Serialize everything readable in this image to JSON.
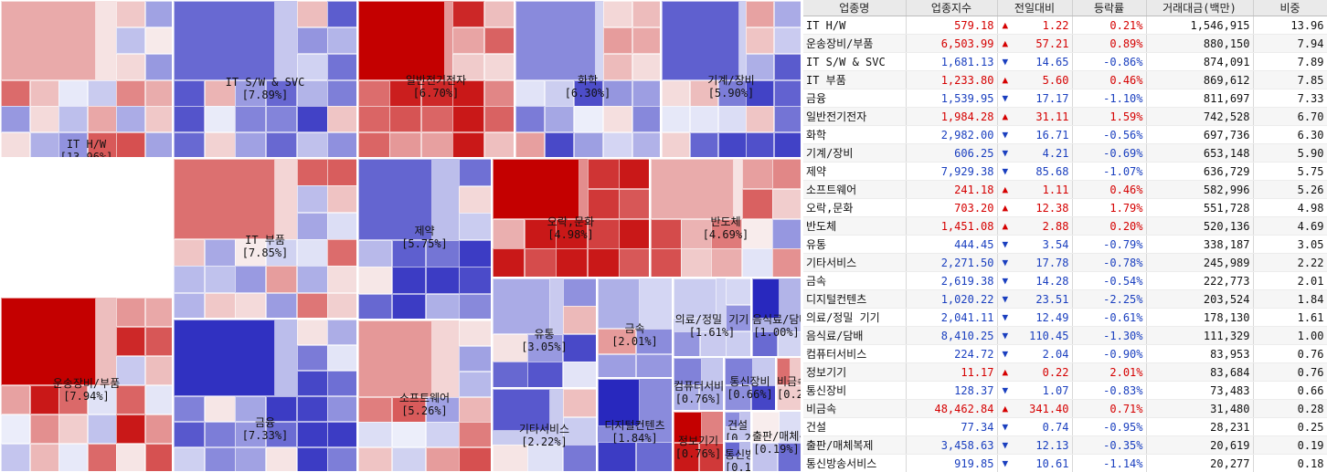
{
  "colors": {
    "up_strong": "#c00000",
    "down_strong": "#0000a8",
    "up_text": "#d50000",
    "down_text": "#1a3fbf"
  },
  "treemap": {
    "sectors": [
      {
        "label": "IT H/W",
        "weight": "[13.96%]",
        "change_pct": 0.21
      },
      {
        "label": "IT S/W & SVC",
        "weight": "[7.89%]",
        "change_pct": -0.86
      },
      {
        "label": "일반전기전자",
        "weight": "[6.70%]",
        "change_pct": 1.59
      },
      {
        "label": "화학",
        "weight": "[6.30%]",
        "change_pct": -0.56
      },
      {
        "label": "기계/장비",
        "weight": "[5.90%]",
        "change_pct": -0.69
      },
      {
        "label": "IT 부품",
        "weight": "[7.85%]",
        "change_pct": 0.46
      },
      {
        "label": "제약",
        "weight": "[5.75%]",
        "change_pct": -1.07
      },
      {
        "label": "오락,문화",
        "weight": "[4.98%]",
        "change_pct": 1.79
      },
      {
        "label": "반도체",
        "weight": "[4.69%]",
        "change_pct": 0.2
      },
      {
        "label": "운송장비/부품",
        "weight": "[7.94%]",
        "change_pct": 0.89
      },
      {
        "label": "금융",
        "weight": "[7.33%]",
        "change_pct": -1.1
      },
      {
        "label": "소프트웨어",
        "weight": "[5.26%]",
        "change_pct": 0.46
      },
      {
        "label": "유통",
        "weight": "[3.05%]",
        "change_pct": -0.79
      },
      {
        "label": "금속",
        "weight": "[2.01%]",
        "change_pct": -0.54
      },
      {
        "label": "기타서비스",
        "weight": "[2.22%]",
        "change_pct": -0.78
      },
      {
        "label": "디지털컨텐츠",
        "weight": "[1.84%]",
        "change_pct": -2.25
      },
      {
        "label": "의료/정밀 기기",
        "weight": "[1.61%]",
        "change_pct": -0.61
      },
      {
        "label": "음식료/담배",
        "weight": "[1.00%]",
        "change_pct": -1.3
      },
      {
        "label": "컴퓨터서비스",
        "weight": "[0.76%]",
        "change_pct": -0.9
      },
      {
        "label": "통신장비",
        "weight": "[0.66%]",
        "change_pct": -0.83
      },
      {
        "label": "비금속",
        "weight": "[0.28%]",
        "change_pct": 0.71
      },
      {
        "label": "건설",
        "weight": "[0.25%]",
        "change_pct": -0.95
      },
      {
        "label": "정보기기",
        "weight": "[0.76%]",
        "change_pct": 2.01
      },
      {
        "label": "출판/매체복제",
        "weight": "[0.19%]",
        "change_pct": -0.35
      },
      {
        "label": "통신방송서비스",
        "weight": "[0.18%]",
        "change_pct": -1.14
      }
    ]
  },
  "table": {
    "headers": [
      "업종명",
      "업종지수",
      "전일대비",
      "등락률",
      "거래대금(백만)",
      "비중"
    ],
    "rows": [
      {
        "name": "IT H/W",
        "index": "579.18",
        "dir": "up",
        "change": "1.22",
        "rate": "0.21%",
        "amount": "1,546,915",
        "weight": "13.96"
      },
      {
        "name": "운송장비/부품",
        "index": "6,503.99",
        "dir": "up",
        "change": "57.21",
        "rate": "0.89%",
        "amount": "880,150",
        "weight": "7.94"
      },
      {
        "name": "IT S/W & SVC",
        "index": "1,681.13",
        "dir": "down",
        "change": "14.65",
        "rate": "-0.86%",
        "amount": "874,091",
        "weight": "7.89"
      },
      {
        "name": "IT 부품",
        "index": "1,233.80",
        "dir": "up",
        "change": "5.60",
        "rate": "0.46%",
        "amount": "869,612",
        "weight": "7.85"
      },
      {
        "name": "금융",
        "index": "1,539.95",
        "dir": "down",
        "change": "17.17",
        "rate": "-1.10%",
        "amount": "811,697",
        "weight": "7.33"
      },
      {
        "name": "일반전기전자",
        "index": "1,984.28",
        "dir": "up",
        "change": "31.11",
        "rate": "1.59%",
        "amount": "742,528",
        "weight": "6.70"
      },
      {
        "name": "화학",
        "index": "2,982.00",
        "dir": "down",
        "change": "16.71",
        "rate": "-0.56%",
        "amount": "697,736",
        "weight": "6.30"
      },
      {
        "name": "기계/장비",
        "index": "606.25",
        "dir": "down",
        "change": "4.21",
        "rate": "-0.69%",
        "amount": "653,148",
        "weight": "5.90"
      },
      {
        "name": "제약",
        "index": "7,929.38",
        "dir": "down",
        "change": "85.68",
        "rate": "-1.07%",
        "amount": "636,729",
        "weight": "5.75"
      },
      {
        "name": "소프트웨어",
        "index": "241.18",
        "dir": "up",
        "change": "1.11",
        "rate": "0.46%",
        "amount": "582,996",
        "weight": "5.26"
      },
      {
        "name": "오락,문화",
        "index": "703.20",
        "dir": "up",
        "change": "12.38",
        "rate": "1.79%",
        "amount": "551,728",
        "weight": "4.98"
      },
      {
        "name": "반도체",
        "index": "1,451.08",
        "dir": "up",
        "change": "2.88",
        "rate": "0.20%",
        "amount": "520,136",
        "weight": "4.69"
      },
      {
        "name": "유통",
        "index": "444.45",
        "dir": "down",
        "change": "3.54",
        "rate": "-0.79%",
        "amount": "338,187",
        "weight": "3.05"
      },
      {
        "name": "기타서비스",
        "index": "2,271.50",
        "dir": "down",
        "change": "17.78",
        "rate": "-0.78%",
        "amount": "245,989",
        "weight": "2.22"
      },
      {
        "name": "금속",
        "index": "2,619.38",
        "dir": "down",
        "change": "14.28",
        "rate": "-0.54%",
        "amount": "222,773",
        "weight": "2.01"
      },
      {
        "name": "디지털컨텐츠",
        "index": "1,020.22",
        "dir": "down",
        "change": "23.51",
        "rate": "-2.25%",
        "amount": "203,524",
        "weight": "1.84"
      },
      {
        "name": "의료/정밀 기기",
        "index": "2,041.11",
        "dir": "down",
        "change": "12.49",
        "rate": "-0.61%",
        "amount": "178,130",
        "weight": "1.61"
      },
      {
        "name": "음식료/담배",
        "index": "8,410.25",
        "dir": "down",
        "change": "110.45",
        "rate": "-1.30%",
        "amount": "111,329",
        "weight": "1.00"
      },
      {
        "name": "컴퓨터서비스",
        "index": "224.72",
        "dir": "down",
        "change": "2.04",
        "rate": "-0.90%",
        "amount": "83,953",
        "weight": "0.76"
      },
      {
        "name": "정보기기",
        "index": "11.17",
        "dir": "up",
        "change": "0.22",
        "rate": "2.01%",
        "amount": "83,684",
        "weight": "0.76"
      },
      {
        "name": "통신장비",
        "index": "128.37",
        "dir": "down",
        "change": "1.07",
        "rate": "-0.83%",
        "amount": "73,483",
        "weight": "0.66"
      },
      {
        "name": "비금속",
        "index": "48,462.84",
        "dir": "up",
        "change": "341.40",
        "rate": "0.71%",
        "amount": "31,480",
        "weight": "0.28"
      },
      {
        "name": "건설",
        "index": "77.34",
        "dir": "down",
        "change": "0.74",
        "rate": "-0.95%",
        "amount": "28,231",
        "weight": "0.25"
      },
      {
        "name": "출판/매체복제",
        "index": "3,458.63",
        "dir": "down",
        "change": "12.13",
        "rate": "-0.35%",
        "amount": "20,619",
        "weight": "0.19"
      },
      {
        "name": "통신방송서비스",
        "index": "919.85",
        "dir": "down",
        "change": "10.61",
        "rate": "-1.14%",
        "amount": "20,277",
        "weight": "0.18"
      }
    ]
  }
}
